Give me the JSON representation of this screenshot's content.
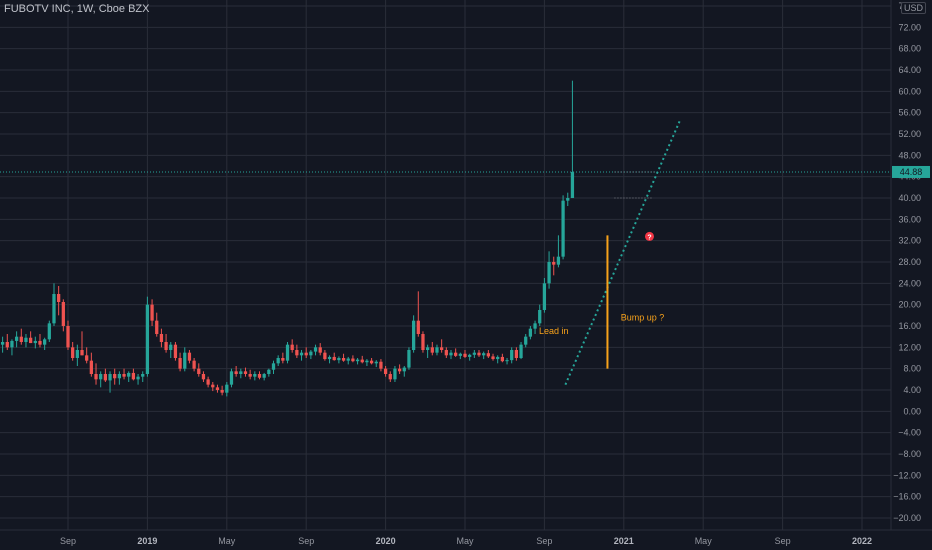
{
  "legend": {
    "title": "FUBOTV INC, 1W, Cboe BZX"
  },
  "currency": "USD",
  "last_price_label": "44.88",
  "colors": {
    "up": "#26a69a",
    "down": "#ef5350",
    "bg": "#131722",
    "grid": "#2a2e39",
    "accent": "#f7a21b",
    "trend": "#26a69a",
    "warn": "#f23645"
  },
  "chart_data": {
    "type": "candlestick",
    "title": "FUBOTV INC, 1W, Cboe BZX",
    "interval": "1W",
    "currency": "USD",
    "ylim": [
      -22,
      78
    ],
    "y_ticks": [
      "76.00",
      "72.00",
      "68.00",
      "64.00",
      "60.00",
      "56.00",
      "52.00",
      "48.00",
      "44.00",
      "40.00",
      "36.00",
      "32.00",
      "28.00",
      "24.00",
      "20.00",
      "16.00",
      "12.00",
      "8.00",
      "4.00",
      "0.00",
      "−4.00",
      "−8.00",
      "−12.00",
      "−16.00",
      "−20.00"
    ],
    "y_tick_values": [
      76,
      72,
      68,
      64,
      60,
      56,
      52,
      48,
      44,
      40,
      36,
      32,
      28,
      24,
      20,
      16,
      12,
      8,
      4,
      0,
      -4,
      -8,
      -12,
      -16,
      -20
    ],
    "x_ticks": [
      {
        "label": "Sep",
        "week": 8,
        "major": false
      },
      {
        "label": "2019",
        "week": 25,
        "major": true
      },
      {
        "label": "May",
        "week": 42,
        "major": false
      },
      {
        "label": "Sep",
        "week": 59,
        "major": false
      },
      {
        "label": "2020",
        "week": 76,
        "major": true
      },
      {
        "label": "May",
        "week": 93,
        "major": false
      },
      {
        "label": "Sep",
        "week": 110,
        "major": false
      },
      {
        "label": "2021",
        "week": 127,
        "major": true
      },
      {
        "label": "May",
        "week": 144,
        "major": false
      },
      {
        "label": "Sep",
        "week": 161,
        "major": false
      },
      {
        "label": "2022",
        "week": 178,
        "major": true
      }
    ],
    "x_range_weeks": [
      -6,
      182
    ],
    "last_price": 44.88,
    "candles": [
      [
        12.5,
        14.0,
        11.0,
        13.0
      ],
      [
        13.0,
        14.5,
        11.5,
        12.0
      ],
      [
        12.0,
        13.5,
        10.5,
        13.2
      ],
      [
        13.2,
        15.0,
        12.0,
        14.0
      ],
      [
        14.0,
        15.5,
        12.5,
        13.0
      ],
      [
        13.0,
        14.5,
        12.0,
        13.8
      ],
      [
        13.8,
        15.0,
        12.8,
        12.8
      ],
      [
        12.8,
        14.0,
        11.8,
        13.2
      ],
      [
        13.2,
        14.5,
        12.0,
        12.5
      ],
      [
        12.5,
        13.8,
        11.5,
        13.5
      ],
      [
        13.5,
        17.0,
        13.0,
        16.5
      ],
      [
        16.5,
        24.0,
        16.0,
        22.0
      ],
      [
        22.0,
        23.5,
        18.0,
        20.5
      ],
      [
        20.5,
        21.0,
        15.0,
        16.0
      ],
      [
        16.0,
        17.0,
        11.5,
        12.0
      ],
      [
        12.0,
        13.0,
        9.5,
        10.0
      ],
      [
        10.0,
        12.5,
        8.5,
        11.5
      ],
      [
        11.5,
        15.0,
        10.5,
        10.5
      ],
      [
        10.5,
        12.0,
        9.0,
        9.5
      ],
      [
        9.5,
        11.0,
        6.5,
        7.0
      ],
      [
        7.0,
        9.0,
        5.0,
        6.0
      ],
      [
        6.0,
        7.5,
        4.5,
        7.0
      ],
      [
        7.0,
        8.0,
        5.5,
        5.8
      ],
      [
        5.8,
        7.5,
        3.5,
        7.0
      ],
      [
        7.0,
        8.0,
        5.0,
        6.2
      ],
      [
        6.2,
        7.5,
        5.0,
        7.0
      ],
      [
        7.0,
        8.0,
        6.0,
        6.5
      ],
      [
        6.5,
        7.5,
        5.5,
        7.2
      ],
      [
        7.2,
        8.0,
        5.8,
        6.0
      ],
      [
        6.0,
        7.0,
        5.0,
        6.5
      ],
      [
        6.5,
        7.5,
        5.5,
        7.0
      ],
      [
        7.0,
        21.5,
        6.5,
        20.0
      ],
      [
        20.0,
        21.0,
        16.0,
        17.0
      ],
      [
        17.0,
        18.5,
        14.0,
        14.5
      ],
      [
        14.5,
        15.5,
        12.0,
        13.0
      ],
      [
        13.0,
        14.5,
        11.0,
        11.5
      ],
      [
        11.5,
        13.0,
        10.0,
        12.5
      ],
      [
        12.5,
        13.0,
        9.5,
        10.0
      ],
      [
        10.0,
        11.0,
        7.5,
        8.0
      ],
      [
        8.0,
        12.0,
        7.5,
        11.0
      ],
      [
        11.0,
        11.5,
        9.0,
        9.5
      ],
      [
        9.5,
        10.0,
        7.5,
        8.0
      ],
      [
        8.0,
        9.0,
        6.5,
        7.0
      ],
      [
        7.0,
        7.5,
        5.5,
        6.0
      ],
      [
        6.0,
        6.5,
        4.5,
        5.0
      ],
      [
        5.0,
        5.5,
        3.8,
        4.5
      ],
      [
        4.5,
        5.0,
        3.5,
        4.0
      ],
      [
        4.0,
        4.8,
        3.0,
        3.5
      ],
      [
        3.5,
        5.5,
        2.8,
        5.0
      ],
      [
        5.0,
        8.0,
        4.5,
        7.5
      ],
      [
        7.5,
        8.5,
        6.5,
        7.0
      ],
      [
        7.0,
        8.0,
        6.2,
        7.5
      ],
      [
        7.5,
        8.2,
        6.5,
        7.0
      ],
      [
        7.0,
        7.8,
        6.0,
        6.5
      ],
      [
        6.5,
        7.5,
        5.8,
        7.0
      ],
      [
        7.0,
        7.5,
        6.0,
        6.3
      ],
      [
        6.3,
        7.2,
        5.8,
        7.0
      ],
      [
        7.0,
        8.0,
        6.5,
        7.8
      ],
      [
        7.8,
        9.5,
        7.0,
        9.0
      ],
      [
        9.0,
        10.5,
        8.5,
        10.0
      ],
      [
        10.0,
        11.0,
        9.0,
        9.5
      ],
      [
        9.5,
        13.0,
        9.0,
        12.5
      ],
      [
        12.5,
        13.5,
        11.0,
        11.5
      ],
      [
        11.5,
        12.5,
        10.0,
        10.5
      ],
      [
        10.5,
        11.5,
        9.5,
        11.0
      ],
      [
        11.0,
        12.0,
        10.0,
        10.5
      ],
      [
        10.5,
        11.5,
        9.8,
        11.2
      ],
      [
        11.2,
        12.5,
        10.5,
        12.0
      ],
      [
        12.0,
        12.8,
        10.5,
        11.0
      ],
      [
        11.0,
        11.5,
        9.5,
        9.8
      ],
      [
        9.8,
        10.5,
        9.0,
        10.2
      ],
      [
        10.2,
        11.0,
        9.5,
        9.6
      ],
      [
        9.6,
        10.3,
        9.0,
        10.0
      ],
      [
        10.0,
        10.8,
        9.3,
        9.5
      ],
      [
        9.5,
        10.2,
        8.8,
        9.9
      ],
      [
        9.9,
        10.5,
        9.2,
        9.4
      ],
      [
        9.4,
        10.0,
        8.8,
        9.7
      ],
      [
        9.7,
        10.4,
        9.0,
        9.2
      ],
      [
        9.2,
        9.8,
        8.5,
        9.5
      ],
      [
        9.5,
        10.0,
        8.8,
        9.0
      ],
      [
        9.0,
        9.6,
        8.3,
        9.3
      ],
      [
        9.3,
        9.8,
        7.5,
        8.0
      ],
      [
        8.0,
        8.5,
        6.5,
        7.0
      ],
      [
        7.0,
        7.5,
        5.5,
        6.0
      ],
      [
        6.0,
        8.5,
        5.5,
        8.0
      ],
      [
        8.0,
        8.8,
        7.0,
        7.5
      ],
      [
        7.5,
        8.5,
        6.5,
        8.2
      ],
      [
        8.2,
        12.0,
        7.8,
        11.5
      ],
      [
        11.5,
        18.0,
        11.0,
        17.0
      ],
      [
        17.0,
        22.5,
        14.0,
        14.5
      ],
      [
        14.5,
        15.0,
        11.0,
        11.5
      ],
      [
        11.5,
        12.5,
        10.0,
        12.0
      ],
      [
        12.0,
        13.0,
        10.5,
        11.0
      ],
      [
        11.0,
        12.5,
        10.5,
        12.0
      ],
      [
        12.0,
        13.5,
        11.0,
        11.5
      ],
      [
        11.5,
        12.0,
        10.0,
        10.5
      ],
      [
        10.5,
        11.5,
        9.8,
        11.0
      ],
      [
        11.0,
        11.8,
        10.2,
        10.4
      ],
      [
        10.4,
        11.0,
        9.8,
        10.8
      ],
      [
        10.8,
        11.5,
        10.0,
        10.2
      ],
      [
        10.2,
        10.8,
        9.5,
        10.6
      ],
      [
        10.6,
        11.5,
        10.0,
        11.0
      ],
      [
        11.0,
        11.5,
        10.2,
        10.5
      ],
      [
        10.5,
        11.2,
        9.8,
        10.9
      ],
      [
        10.9,
        11.5,
        10.0,
        10.3
      ],
      [
        10.3,
        10.8,
        9.5,
        9.8
      ],
      [
        9.8,
        10.5,
        9.0,
        10.2
      ],
      [
        10.2,
        10.8,
        9.2,
        9.4
      ],
      [
        9.4,
        10.0,
        8.8,
        9.6
      ],
      [
        9.6,
        12.0,
        9.0,
        11.5
      ],
      [
        11.5,
        12.0,
        9.5,
        10.0
      ],
      [
        10.0,
        13.0,
        9.8,
        12.5
      ],
      [
        12.5,
        14.5,
        12.0,
        14.0
      ],
      [
        14.0,
        16.0,
        13.5,
        15.5
      ],
      [
        15.5,
        17.0,
        14.5,
        16.5
      ],
      [
        16.5,
        20.0,
        16.0,
        19.0
      ],
      [
        19.0,
        25.0,
        18.5,
        24.0
      ],
      [
        24.0,
        30.0,
        23.0,
        28.0
      ],
      [
        28.0,
        29.0,
        25.5,
        27.5
      ],
      [
        27.5,
        33.0,
        27.0,
        29.0
      ],
      [
        29.0,
        40.5,
        28.5,
        39.5
      ],
      [
        39.5,
        41.0,
        38.5,
        40.0
      ],
      [
        40.0,
        62.0,
        41.0,
        44.88
      ]
    ],
    "annotations": [
      {
        "text": "Lead in",
        "week": 112,
        "price": 14.5
      },
      {
        "text": "Bump up ?",
        "week": 131,
        "price": 17.0
      }
    ],
    "trendline": {
      "from": [
        114.5,
        5.0
      ],
      "to": [
        139,
        54.5
      ]
    },
    "arrow_line": {
      "week": 123.5,
      "from_price": 8.0,
      "to_price": 33.0
    },
    "dotted_refs": [
      {
        "week_from": 125,
        "week_to": 134,
        "price": 44.88
      },
      {
        "week_from": 125,
        "week_to": 133,
        "price": 40.0
      }
    ],
    "warn_marker": {
      "week": 132.5,
      "price": 32.8
    }
  }
}
